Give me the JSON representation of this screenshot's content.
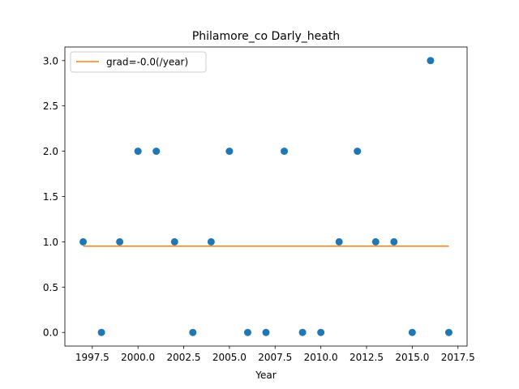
{
  "chart_data": {
    "type": "scatter",
    "title": "Philamore_co Darly_heath",
    "xlabel": "Year",
    "ylabel": "",
    "xlim": [
      1996.0,
      2018.0
    ],
    "ylim": [
      -0.15,
      3.15
    ],
    "xticks": [
      1997.5,
      2000.0,
      2002.5,
      2005.0,
      2007.5,
      2010.0,
      2012.5,
      2015.0,
      2017.5
    ],
    "xtick_labels": [
      "1997.5",
      "2000.0",
      "2002.5",
      "2005.0",
      "2007.5",
      "2010.0",
      "2012.5",
      "2015.0",
      "2017.5"
    ],
    "yticks": [
      0.0,
      0.5,
      1.0,
      1.5,
      2.0,
      2.5,
      3.0
    ],
    "ytick_labels": [
      "0.0",
      "0.5",
      "1.0",
      "1.5",
      "2.0",
      "2.5",
      "3.0"
    ],
    "grid": false,
    "legend_position": "top-left",
    "series": [
      {
        "kind": "scatter",
        "color": "#1f77b4",
        "x": [
          1997,
          1998,
          1999,
          2000,
          2001,
          2002,
          2003,
          2004,
          2005,
          2006,
          2007,
          2008,
          2009,
          2010,
          2011,
          2012,
          2013,
          2014,
          2015,
          2016,
          2017
        ],
        "y": [
          1,
          0,
          1,
          2,
          2,
          1,
          0,
          1,
          2,
          0,
          0,
          2,
          0,
          0,
          1,
          2,
          1,
          1,
          0,
          3,
          0
        ]
      },
      {
        "kind": "line",
        "name": "grad=-0.0(/year)",
        "color": "#ff7f0e",
        "x": [
          1997,
          2017
        ],
        "y": [
          0.952,
          0.952
        ]
      }
    ]
  }
}
